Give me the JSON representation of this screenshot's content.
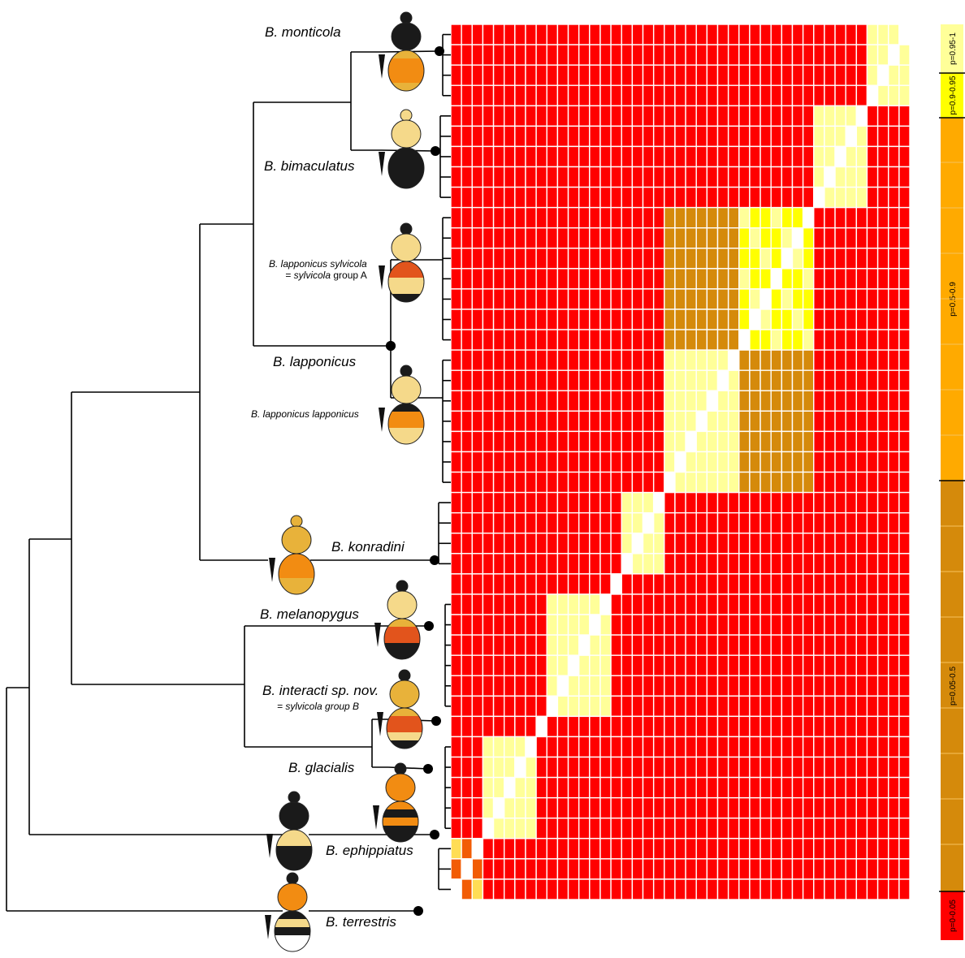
{
  "figure": {
    "colors": {
      "p0_005": "#ff0000",
      "p005_05": "#d58a0b",
      "p05_09": "#ffaa00",
      "p09_095": "#ffff00",
      "p095_1": "#ffff99",
      "tree": "#000000",
      "grid": "#ffffff"
    },
    "taxa": {
      "monticola": "B. monticola",
      "bimaculatus": "B. bimaculatus",
      "sylvicola_name": "B. lapponicus sylvicola",
      "sylvicola_eq_prefix": "= ",
      "sylvicola_eq_name": "sylvicola",
      "sylvicola_eq_suffix": " group A",
      "lapponicus": "B. lapponicus",
      "lapp_lapp": "B. lapponicus lapponicus",
      "konradini": "B. konradini",
      "melanopygus": "B. melanopygus",
      "interacti": "B. interacti sp. nov.",
      "interacti_eq": "= sylvicola group B",
      "glacialis": "B. glacialis",
      "ephippiatus": "B. ephippiatus",
      "terrestris": "B. terrestris"
    },
    "legend": {
      "bins": [
        {
          "label": "p=0.95-1",
          "color": "#ffff99"
        },
        {
          "label": "p=0.9-0.95",
          "color": "#ffff00"
        },
        {
          "label": "p=0.5-0.9",
          "color": "#ffaa00"
        },
        {
          "label": "p=0.05-0.5",
          "color": "#d58a0b"
        },
        {
          "label": "p=0-0.05",
          "color": "#ff0000"
        }
      ]
    },
    "heatmap": {
      "n_samples": 43,
      "groups": [
        {
          "name": "monticola",
          "size": 4
        },
        {
          "name": "bimaculatus",
          "size": 5
        },
        {
          "name": "sylvicola",
          "size": 7
        },
        {
          "name": "lapponicus",
          "size": 7
        },
        {
          "name": "konradini",
          "size": 4
        },
        {
          "name": "melanopygus",
          "size": 1
        },
        {
          "name": "interacti",
          "size": 6
        },
        {
          "name": "glacialis",
          "size": 1
        },
        {
          "name": "ephippiatus",
          "size": 5
        },
        {
          "name": "terrestris",
          "size": 3
        }
      ]
    }
  }
}
